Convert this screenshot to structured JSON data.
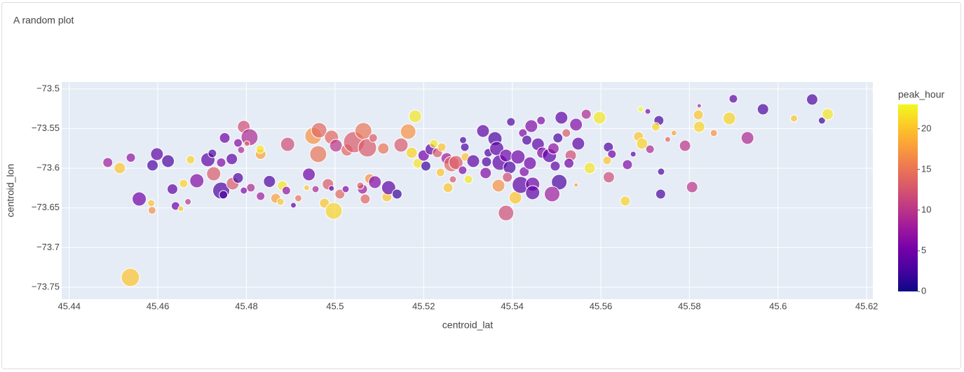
{
  "chart_data": {
    "type": "scatter",
    "title": "A random plot",
    "x_label": "centroid_lat",
    "y_label": "centroid_lon",
    "color_label": "peak_hour",
    "xlim": [
      45.4383,
      45.6214
    ],
    "xticks": [
      45.44,
      45.46,
      45.48,
      45.5,
      45.52,
      45.54,
      45.56,
      45.58,
      45.6,
      45.62
    ],
    "ylim": [
      -73.765,
      -73.4912
    ],
    "yticks": [
      {
        "value": -73.5,
        "label": "−73.5"
      },
      {
        "value": -73.55,
        "label": "−73.55"
      },
      {
        "value": -73.6,
        "label": "−73.6"
      },
      {
        "value": -73.65,
        "label": "−73.65"
      },
      {
        "value": -73.7,
        "label": "−73.7"
      },
      {
        "value": -73.75,
        "label": "−73.75"
      }
    ],
    "colorlim": [
      0,
      23
    ],
    "colorticks": [
      0,
      5,
      10,
      15,
      20
    ],
    "colorscale": [
      "#0d0887",
      "#46039f",
      "#7201a8",
      "#9c179e",
      "#bd3786",
      "#d8576b",
      "#ed7953",
      "#fb9f3a",
      "#fdca26",
      "#f0f921"
    ],
    "grid": true,
    "x": [
      45.4487,
      45.4514,
      45.4539,
      45.4558,
      45.4538,
      45.4588,
      45.4598,
      45.4585,
      45.4587,
      45.4623,
      45.4633,
      45.464,
      45.4652,
      45.4658,
      45.4674,
      45.4688,
      45.4668,
      45.4713,
      45.4723,
      45.4726,
      45.4743,
      45.4748,
      45.4751,
      45.4743,
      45.4767,
      45.4769,
      45.4781,
      45.4781,
      45.4794,
      45.4807,
      45.4788,
      45.4801,
      45.4832,
      45.4831,
      45.481,
      45.4794,
      45.4852,
      45.4866,
      45.4832,
      45.4877,
      45.4881,
      45.489,
      45.4893,
      45.4917,
      45.4906,
      45.4941,
      45.4936,
      45.4951,
      45.4964,
      45.4962,
      45.4984,
      45.4956,
      45.4976,
      45.4997,
      45.4992,
      45.5002,
      45.5027,
      45.5011,
      45.5024,
      45.4992,
      45.5043,
      45.5064,
      45.5073,
      45.5062,
      45.5068,
      45.5057,
      45.5078,
      45.509,
      45.5086,
      45.5109,
      45.5117,
      45.5121,
      45.514,
      45.5149,
      45.5165,
      45.5181,
      45.5173,
      45.5187,
      45.52,
      45.5205,
      45.5216,
      45.5223,
      45.5231,
      45.5241,
      45.5252,
      45.5263,
      45.5273,
      45.5238,
      45.5255,
      45.5266,
      45.5288,
      45.5294,
      45.5301,
      45.5293,
      45.5289,
      45.5312,
      45.5334,
      45.534,
      45.5342,
      45.5346,
      45.5361,
      45.5365,
      45.5372,
      45.5369,
      45.5386,
      45.5386,
      45.5394,
      45.5389,
      45.5397,
      45.5407,
      45.5413,
      45.5419,
      45.5424,
      45.5427,
      45.5433,
      45.544,
      45.5443,
      45.5446,
      45.5446,
      45.5458,
      45.5465,
      45.5468,
      45.5484,
      45.5493,
      45.5497,
      45.5503,
      45.5506,
      45.549,
      45.5511,
      45.5522,
      45.5532,
      45.5544,
      45.5549,
      45.5528,
      45.5567,
      45.5575,
      45.5597,
      45.5544,
      45.5617,
      45.5625,
      45.5618,
      45.5614,
      45.5655,
      45.566,
      45.5673,
      45.5685,
      45.5693,
      45.569,
      45.5706,
      45.5711,
      45.5731,
      45.5724,
      45.5736,
      45.5735,
      45.5751,
      45.5765,
      45.579,
      45.5806,
      45.5822,
      45.582,
      45.5822,
      45.5855,
      45.589,
      45.5899,
      45.5931,
      45.5966,
      45.6036,
      45.6077,
      45.6099,
      45.6112
    ],
    "y": [
      -73.5928,
      -73.5998,
      -73.5866,
      -73.6387,
      -73.7376,
      -73.5963,
      -73.5822,
      -73.644,
      -73.653,
      -73.591,
      -73.6263,
      -73.6475,
      -73.651,
      -73.6193,
      -73.5892,
      -73.6157,
      -73.6422,
      -73.5892,
      -73.5813,
      -73.6069,
      -73.6281,
      -73.6334,
      -73.5618,
      -73.5928,
      -73.5883,
      -73.6193,
      -73.568,
      -73.6122,
      -73.5476,
      -73.5609,
      -73.5769,
      -73.569,
      -73.5822,
      -73.576,
      -73.6245,
      -73.6281,
      -73.6166,
      -73.6378,
      -73.6352,
      -73.6422,
      -73.6219,
      -73.6281,
      -73.5698,
      -73.6378,
      -73.6466,
      -73.6078,
      -73.6245,
      -73.5592,
      -73.5521,
      -73.5822,
      -73.6201,
      -73.6263,
      -73.644,
      -73.6537,
      -73.5609,
      -73.5715,
      -73.5769,
      -73.6325,
      -73.6263,
      -73.6254,
      -73.5671,
      -73.553,
      -73.5742,
      -73.6263,
      -73.6387,
      -73.6219,
      -73.6131,
      -73.6175,
      -73.5618,
      -73.5751,
      -73.6361,
      -73.6245,
      -73.6325,
      -73.5707,
      -73.5538,
      -73.5345,
      -73.5804,
      -73.5937,
      -73.5839,
      -73.5972,
      -73.576,
      -73.569,
      -73.5804,
      -73.5733,
      -73.5875,
      -73.5946,
      -73.5928,
      -73.6052,
      -73.6245,
      -73.614,
      -73.6025,
      -73.5857,
      -73.614,
      -73.5733,
      -73.5645,
      -73.591,
      -73.553,
      -73.606,
      -73.5919,
      -73.5804,
      -73.5627,
      -73.5751,
      -73.5928,
      -73.6219,
      -73.6564,
      -73.5839,
      -73.5989,
      -73.6113,
      -73.5415,
      -73.637,
      -73.5857,
      -73.621,
      -73.5556,
      -73.6043,
      -73.5645,
      -73.5937,
      -73.5468,
      -73.6201,
      -73.6307,
      -73.5698,
      -73.5398,
      -73.5804,
      -73.5839,
      -73.5751,
      -73.5972,
      -73.5618,
      -73.6175,
      -73.6325,
      -73.5362,
      -73.5556,
      -73.5839,
      -73.545,
      -73.5689,
      -73.5937,
      -73.5318,
      -73.5998,
      -73.5362,
      -73.621,
      -73.5733,
      -73.5822,
      -73.6113,
      -73.5901,
      -73.6413,
      -73.5954,
      -73.5822,
      -73.56,
      -73.5689,
      -73.5256,
      -73.5283,
      -73.576,
      -73.5398,
      -73.5477,
      -73.6043,
      -73.6325,
      -73.5636,
      -73.5556,
      -73.5716,
      -73.6237,
      -73.5212,
      -73.5327,
      -73.5477,
      -73.5556,
      -73.5371,
      -73.5124,
      -73.5618,
      -73.5256,
      -73.5371,
      -73.5133,
      -73.5398,
      -73.5318
    ],
    "sizes": [
      14,
      16,
      13,
      20,
      26,
      16,
      18,
      10,
      11,
      18,
      15,
      12,
      8,
      12,
      12,
      20,
      9,
      20,
      12,
      20,
      24,
      12,
      15,
      13,
      16,
      18,
      12,
      15,
      18,
      24,
      10,
      8,
      15,
      12,
      12,
      10,
      17,
      14,
      12,
      10,
      14,
      12,
      20,
      10,
      8,
      18,
      8,
      24,
      22,
      24,
      16,
      10,
      14,
      24,
      20,
      18,
      17,
      14,
      10,
      8,
      30,
      24,
      26,
      14,
      14,
      10,
      14,
      18,
      12,
      16,
      14,
      20,
      14,
      20,
      22,
      18,
      16,
      14,
      16,
      14,
      16,
      12,
      14,
      12,
      16,
      22,
      20,
      12,
      14,
      10,
      12,
      12,
      12,
      12,
      10,
      18,
      18,
      16,
      14,
      12,
      20,
      20,
      22,
      18,
      22,
      18,
      18,
      14,
      12,
      18,
      20,
      24,
      12,
      14,
      14,
      18,
      18,
      20,
      20,
      18,
      12,
      16,
      20,
      16,
      14,
      14,
      22,
      22,
      18,
      12,
      16,
      18,
      18,
      14,
      14,
      16,
      18,
      6,
      14,
      12,
      16,
      12,
      14,
      14,
      8,
      14,
      16,
      8,
      8,
      12,
      14,
      12,
      10,
      14,
      8,
      8,
      16,
      16,
      6,
      14,
      16,
      10,
      18,
      12,
      18,
      16,
      10,
      16,
      10,
      16
    ],
    "colors": [
      8,
      20,
      7,
      5,
      20,
      3,
      4,
      20,
      17,
      3,
      4,
      5,
      20,
      21,
      21,
      6,
      10,
      4,
      3,
      13,
      3,
      3,
      5,
      6,
      4,
      13,
      6,
      3,
      12,
      9,
      9,
      14,
      18,
      22,
      9,
      6,
      3,
      18,
      8,
      20,
      22,
      7,
      12,
      15,
      4,
      5,
      20,
      17,
      14,
      15,
      13,
      9,
      20,
      21,
      14,
      10,
      14,
      14,
      6,
      4,
      13,
      15,
      13,
      8,
      14,
      13,
      17,
      6,
      13,
      15,
      20,
      4,
      2,
      13,
      17,
      22,
      21,
      22,
      5,
      2,
      4,
      22,
      13,
      20,
      8,
      14,
      13,
      20,
      20,
      13,
      6,
      20,
      22,
      3,
      3,
      4,
      4,
      6,
      3,
      3,
      3,
      4,
      4,
      17,
      12,
      5,
      3,
      12,
      3,
      20,
      5,
      4,
      6,
      6,
      3,
      5,
      6,
      5,
      4,
      4,
      6,
      6,
      4,
      7,
      4,
      3,
      3,
      8,
      4,
      13,
      12,
      6,
      4,
      5,
      9,
      22,
      22,
      18,
      3,
      5,
      12,
      20,
      21,
      6,
      4,
      20,
      21,
      23,
      6,
      9,
      3,
      21,
      3,
      3,
      14,
      18,
      10,
      10,
      9,
      20,
      21,
      17,
      21,
      4,
      9,
      3,
      20,
      3,
      2,
      22
    ]
  }
}
